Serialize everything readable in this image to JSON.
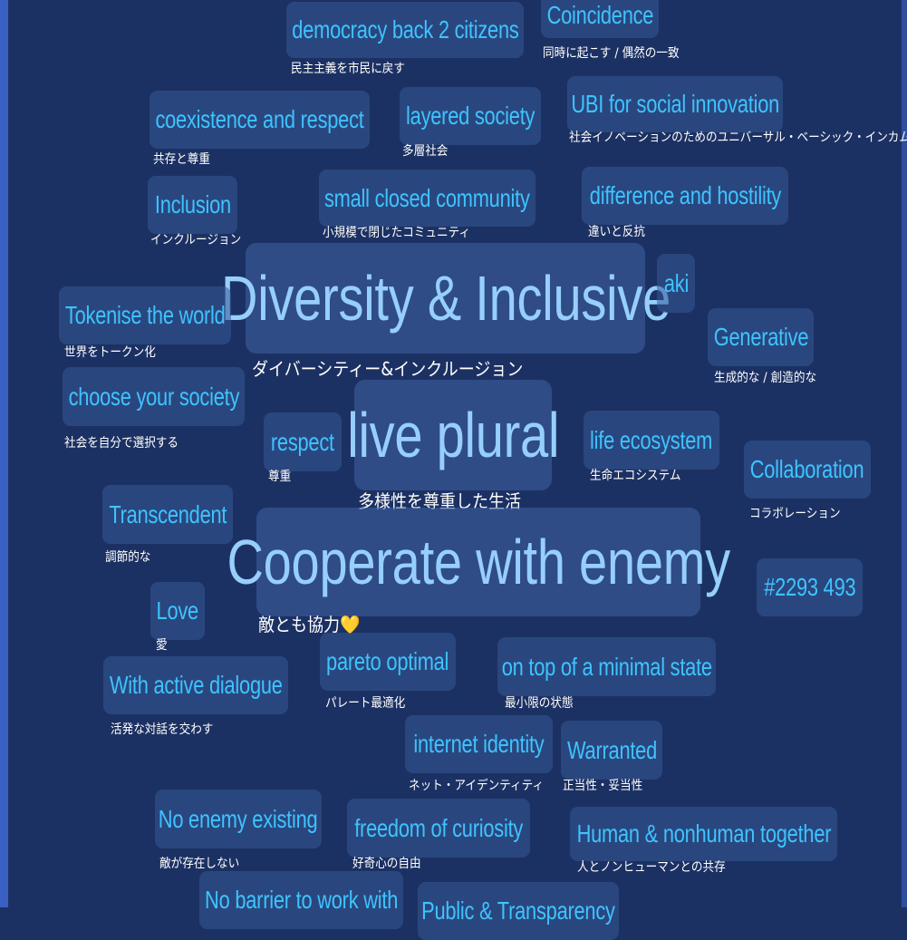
{
  "colors": {
    "background": "#1c3163",
    "tag_text": "#3fc3ff",
    "large_tag_text": "#97cffc",
    "subtitle_text": "#ffffff",
    "edge": "#3a60c4"
  },
  "tags": [
    {
      "label": "democracy back 2 citizens",
      "jp": "民主主義を市民に戻す"
    },
    {
      "label": "Coincidence",
      "jp": "同時に起こす / 偶然の一致"
    },
    {
      "label": "coexistence and respect",
      "jp": "共存と尊重"
    },
    {
      "label": "layered society",
      "jp": "多層社会"
    },
    {
      "label": "UBI for social innovation",
      "jp": "社会イノベーションのためのユニバーサル・ベーシック・インカム"
    },
    {
      "label": "Inclusion",
      "jp": "インクルージョン"
    },
    {
      "label": "small closed community",
      "jp": "小規模で閉じたコミュニティ"
    },
    {
      "label": "difference and hostility",
      "jp": "違いと反抗"
    },
    {
      "label": "Diversity & Inclusive",
      "jp": "ダイバーシティー&インクルージョン"
    },
    {
      "label": "aki"
    },
    {
      "label": "Tokenise the world",
      "jp": "世界をトークン化"
    },
    {
      "label": "Generative",
      "jp": "生成的な / 創造的な"
    },
    {
      "label": "choose your society",
      "jp": "社会を自分で選択する"
    },
    {
      "label": "respect",
      "jp": "尊重"
    },
    {
      "label": "live plural",
      "jp": "多様性を尊重した生活"
    },
    {
      "label": "life ecosystem",
      "jp": "生命エコシステム"
    },
    {
      "label": "Collaboration",
      "jp": "コラボレーション"
    },
    {
      "label": "Transcendent",
      "jp": "調節的な"
    },
    {
      "label": "Cooperate with enemy",
      "jp": "敵とも協力💛"
    },
    {
      "label": "#2293 493"
    },
    {
      "label": "Love",
      "jp": "愛"
    },
    {
      "label": "pareto optimal",
      "jp": "パレート最適化"
    },
    {
      "label": "on top of a minimal state",
      "jp": "最小限の状態"
    },
    {
      "label": "With active dialogue",
      "jp": "活発な対話を交わす"
    },
    {
      "label": "internet identity",
      "jp": "ネット・アイデンティティ"
    },
    {
      "label": "Warranted",
      "jp": "正当性・妥当性"
    },
    {
      "label": "No enemy existing",
      "jp": "敵が存在しない"
    },
    {
      "label": "freedom of curiosity",
      "jp": "好奇心の自由"
    },
    {
      "label": "Human & nonhuman together",
      "jp": "人とノンヒューマンとの共存"
    },
    {
      "label": "No barrier to work with"
    },
    {
      "label": "Public & Transparency"
    }
  ]
}
